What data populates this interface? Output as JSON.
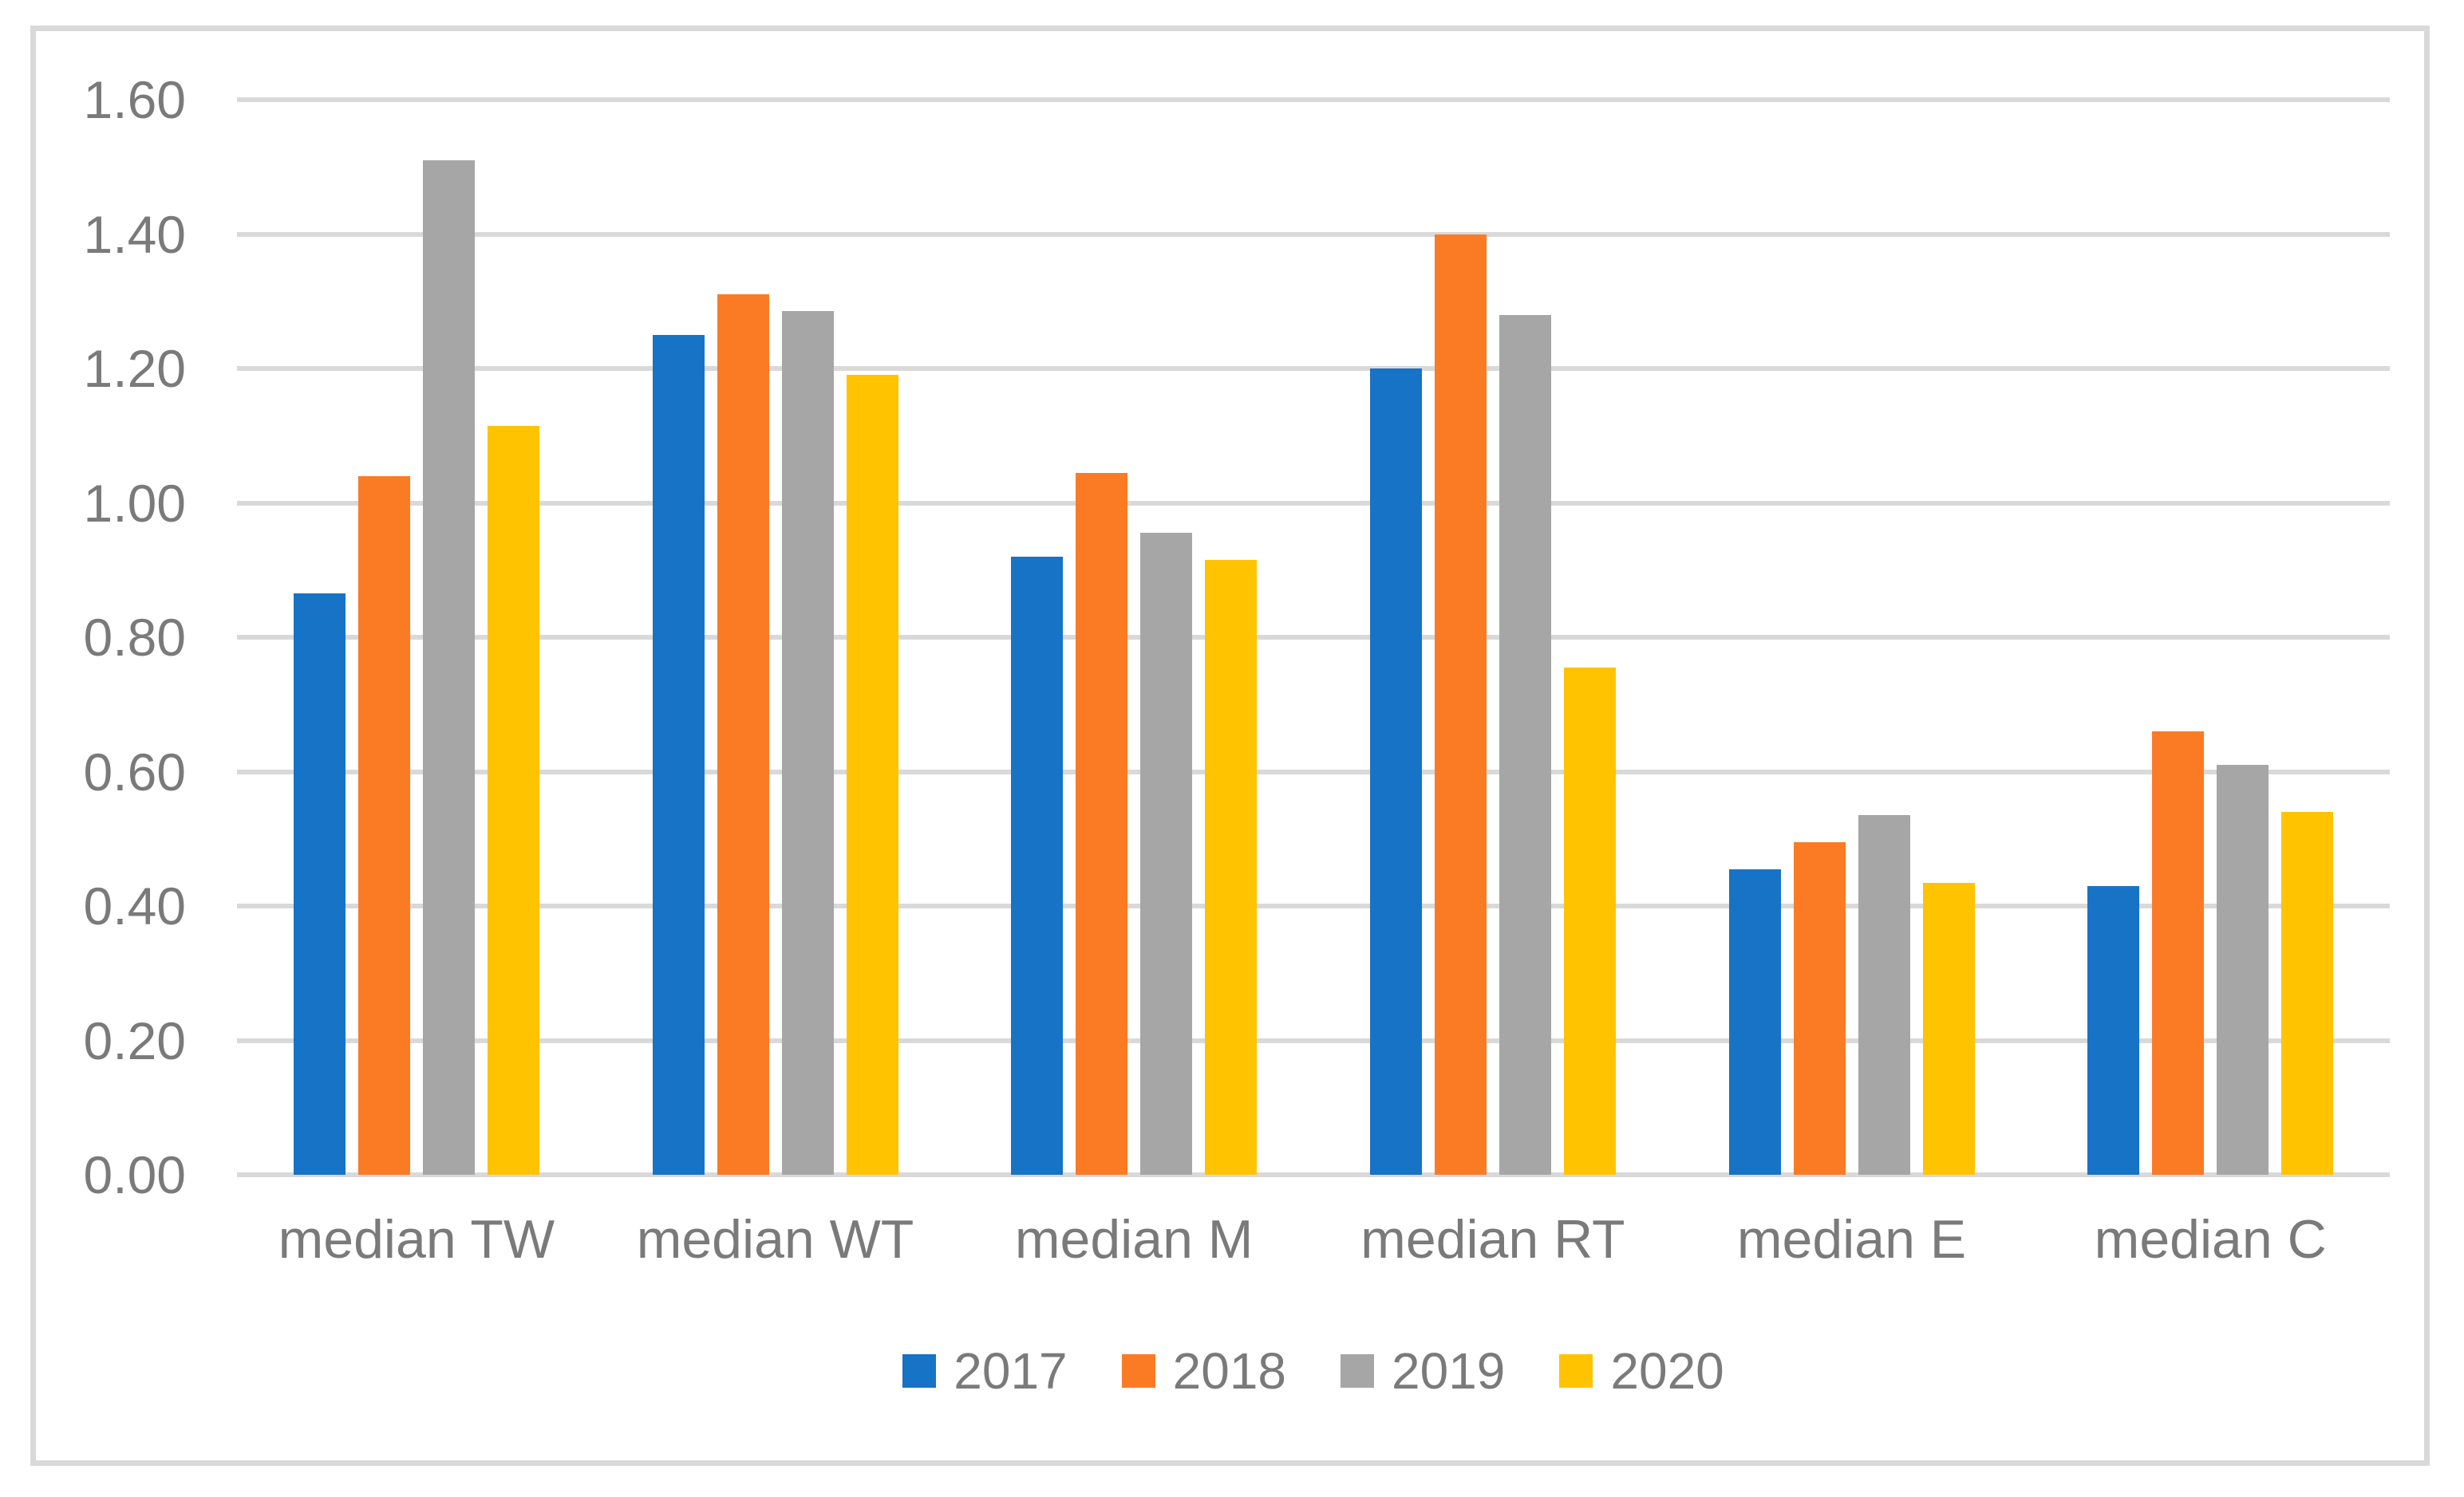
{
  "figure": {
    "background_color": "#ffffff",
    "border_color": "#d9d9d9",
    "gridline_color": "#d9d9d9",
    "axis_text_color": "#7a7a7a"
  },
  "chart_data": {
    "type": "bar",
    "title": "",
    "xlabel": "",
    "ylabel": "",
    "categories": [
      "median TW",
      "median WT",
      "median M",
      "median RT",
      "median E",
      "median C"
    ],
    "series": [
      {
        "name": "2017",
        "color": "#1773c6",
        "values": [
          0.865,
          1.25,
          0.92,
          1.2,
          0.455,
          0.43
        ]
      },
      {
        "name": "2018",
        "color": "#fb7b25",
        "values": [
          1.04,
          1.31,
          1.045,
          1.4,
          0.495,
          0.66
        ]
      },
      {
        "name": "2019",
        "color": "#a6a6a6",
        "values": [
          1.51,
          1.285,
          0.955,
          1.28,
          0.535,
          0.61
        ]
      },
      {
        "name": "2020",
        "color": "#ffc300",
        "values": [
          1.115,
          1.19,
          0.915,
          0.755,
          0.435,
          0.54
        ]
      }
    ],
    "ylim": [
      0,
      1.6
    ],
    "ytick_step": 0.2,
    "ytick_labels": [
      "0.00",
      "0.20",
      "0.40",
      "0.60",
      "0.80",
      "1.00",
      "1.20",
      "1.40",
      "1.60"
    ],
    "grid": true,
    "legend_position": "bottom"
  }
}
